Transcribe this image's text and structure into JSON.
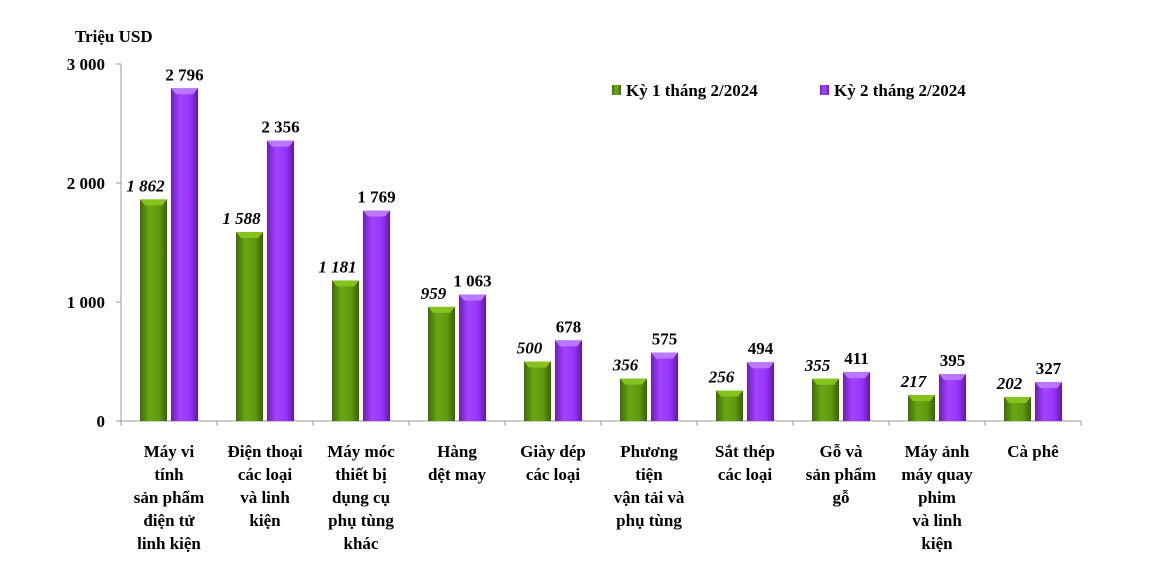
{
  "chart_data": {
    "type": "bar",
    "ylabel": "Triệu USD",
    "ylim": [
      0,
      3000
    ],
    "yticks": [
      0,
      1000,
      2000,
      3000
    ],
    "ytick_labels": [
      "0",
      "1 000",
      "2 000",
      "3 000"
    ],
    "grid": false,
    "legend_position": "top-right",
    "categories": [
      [
        "Máy vi",
        "tính",
        "sản phẩm",
        "điện tử",
        "linh kiện"
      ],
      [
        "Điện thoại",
        "các loại",
        "và linh",
        "kiện"
      ],
      [
        "Máy móc",
        "thiết bị",
        "dụng cụ",
        "phụ tùng",
        "khác"
      ],
      [
        "Hàng",
        "dệt may"
      ],
      [
        "Giày dép",
        "các loại"
      ],
      [
        "Phương",
        "tiện",
        "vận tải và",
        "phụ tùng"
      ],
      [
        "Sắt thép",
        "các loại"
      ],
      [
        "Gỗ và",
        "sản phẩm",
        "gỗ"
      ],
      [
        "Máy ảnh",
        "máy quay",
        "phim",
        "và linh",
        "kiện"
      ],
      [
        "Cà phê"
      ]
    ],
    "series": [
      {
        "name": "Kỳ 1 tháng 2/2024",
        "color": "#5f9a0c",
        "values": [
          1862,
          1588,
          1181,
          959,
          500,
          356,
          256,
          355,
          217,
          202
        ],
        "labels": [
          "1 862",
          "1 588",
          "1 181",
          "959",
          "500",
          "356",
          "256",
          "355",
          "217",
          "202"
        ]
      },
      {
        "name": "Kỳ 2 tháng 2/2024",
        "color": "#9933ff",
        "values": [
          2796,
          2356,
          1769,
          1063,
          678,
          575,
          494,
          411,
          395,
          327
        ],
        "labels": [
          "2 796",
          "2 356",
          "1 769",
          "1 063",
          "678",
          "575",
          "494",
          "411",
          "395",
          "327"
        ]
      }
    ]
  }
}
